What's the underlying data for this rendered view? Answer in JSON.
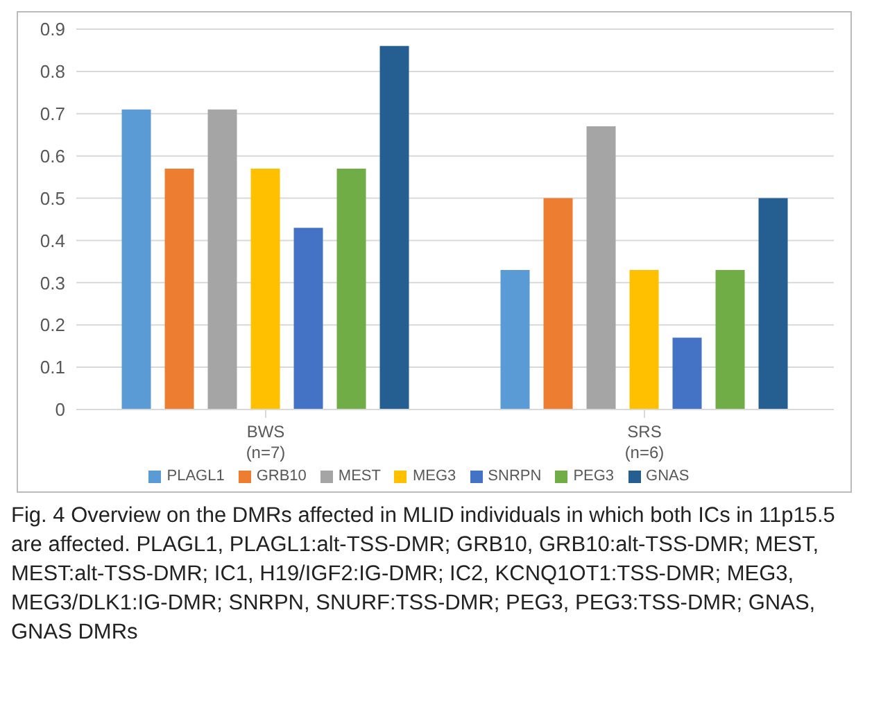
{
  "chart_data": {
    "type": "bar",
    "categories": [
      "BWS\n(n=7)",
      "SRS\n(n=6)"
    ],
    "series": [
      {
        "name": "PLAGL1",
        "color": "#5b9bd5",
        "values": [
          0.71,
          0.33
        ]
      },
      {
        "name": "GRB10",
        "color": "#ed7d31",
        "values": [
          0.57,
          0.5
        ]
      },
      {
        "name": "MEST",
        "color": "#a5a5a5",
        "values": [
          0.71,
          0.67
        ]
      },
      {
        "name": "MEG3",
        "color": "#ffc000",
        "values": [
          0.57,
          0.33
        ]
      },
      {
        "name": "SNRPN",
        "color": "#4472c4",
        "values": [
          0.43,
          0.17
        ]
      },
      {
        "name": "PEG3",
        "color": "#70ad47",
        "values": [
          0.57,
          0.33
        ]
      },
      {
        "name": "GNAS",
        "color": "#255e91",
        "values": [
          0.86,
          0.5
        ]
      }
    ],
    "ylim": [
      0,
      0.9
    ],
    "yticks": [
      0,
      0.1,
      0.2,
      0.3,
      0.4,
      0.5,
      0.6,
      0.7,
      0.8,
      0.9
    ],
    "grid": "y",
    "legend": "bottom",
    "annotations": [
      "Fig. 4  Overview on the DMRs affected in MLID individuals in which both ICs in 11p15.5 are affected. PLAGL1, PLAGL1:alt-TSS-DMR; GRB10, GRB10:alt-TSS-DMR; MEST, MEST:alt-TSS-DMR; IC1, H19/IGF2:IG-DMR; IC2, KCNQ1OT1:TSS-DMR; MEG3, MEG3/DLK1:IG-DMR; SNRPN, SNURF:TSS-DMR; PEG3, PEG3:TSS-DMR; GNAS, GNAS DMRs"
    ]
  }
}
